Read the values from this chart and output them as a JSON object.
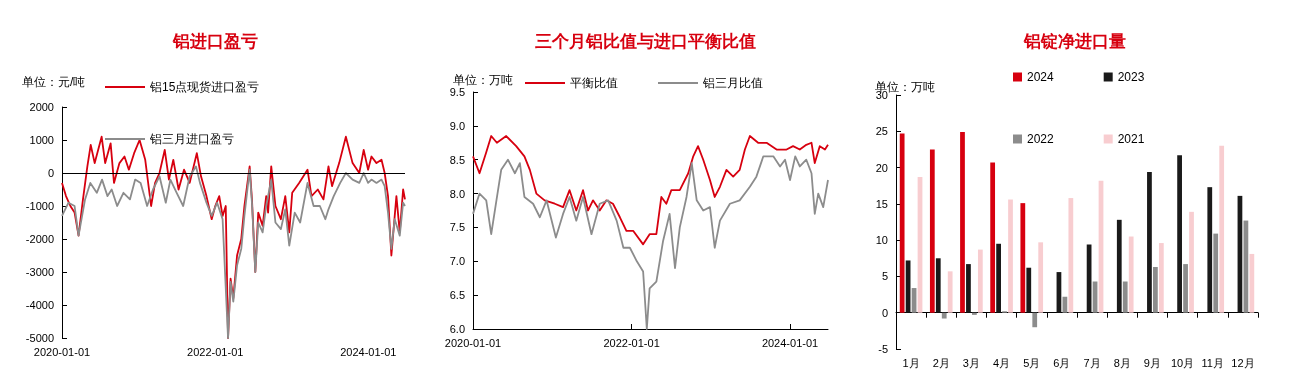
{
  "chart_data": [
    {
      "type": "line",
      "title": "铝进口盈亏",
      "annotations": [
        "单位：元/吨"
      ],
      "legend": "top",
      "marker": "none",
      "xlim": [
        "2020-01-01",
        "2024-06-24"
      ],
      "xticks": [
        "2020-01-01",
        "2022-01-01",
        "2024-01-01"
      ],
      "ylim": [
        -5000,
        2000
      ],
      "yticks": [
        -5000,
        -4000,
        -3000,
        -2000,
        -1000,
        0,
        1000,
        2000
      ],
      "ref_lines": [
        {
          "axis": "y",
          "value": 0,
          "color": "#000000"
        }
      ],
      "series": [
        {
          "name": "铝15点现货进口盈亏",
          "color": "#d7000f",
          "x": [
            "2020-01-01",
            "2020-01-20",
            "2020-02-10",
            "2020-03-01",
            "2020-03-20",
            "2020-04-10",
            "2020-05-01",
            "2020-05-17",
            "2020-06-05",
            "2020-07-08",
            "2020-07-25",
            "2020-08-20",
            "2020-09-05",
            "2020-10-01",
            "2020-10-25",
            "2020-11-15",
            "2020-12-10",
            "2021-01-05",
            "2021-02-01",
            "2021-03-01",
            "2021-03-20",
            "2021-04-10",
            "2021-05-05",
            "2021-05-25",
            "2021-06-15",
            "2021-07-10",
            "2021-08-05",
            "2021-09-01",
            "2021-10-05",
            "2021-10-25",
            "2021-11-20",
            "2021-12-15",
            "2022-01-01",
            "2022-01-20",
            "2022-02-05",
            "2022-02-20",
            "2022-03-03",
            "2022-03-15",
            "2022-03-28",
            "2022-04-15",
            "2022-05-05",
            "2022-05-20",
            "2022-06-14",
            "2022-06-25",
            "2022-07-11",
            "2022-07-25",
            "2022-08-15",
            "2022-09-01",
            "2022-09-10",
            "2022-09-25",
            "2022-10-15",
            "2022-11-10",
            "2022-12-01",
            "2022-12-20",
            "2023-01-03",
            "2023-02-05",
            "2023-03-17",
            "2023-04-05",
            "2023-05-05",
            "2023-06-01",
            "2023-06-25",
            "2023-07-12",
            "2023-08-15",
            "2023-09-16",
            "2023-10-18",
            "2023-11-19",
            "2023-12-10",
            "2023-12-31",
            "2024-01-16",
            "2024-02-09",
            "2024-03-04",
            "2024-03-19",
            "2024-04-04",
            "2024-04-20",
            "2024-05-06",
            "2024-05-14",
            "2024-05-30",
            "2024-06-15",
            "2024-06-24"
          ],
          "values": [
            -300,
            -700,
            -1000,
            -1200,
            -1900,
            -800,
            200,
            850,
            300,
            1100,
            300,
            900,
            -300,
            300,
            500,
            100,
            600,
            1000,
            400,
            -1000,
            -300,
            0,
            700,
            -200,
            400,
            -500,
            100,
            -300,
            600,
            -100,
            -700,
            -1400,
            -1000,
            -700,
            -1300,
            -1000,
            -5000,
            -3200,
            -3800,
            -2500,
            -2000,
            -1000,
            200,
            -800,
            -3000,
            -1200,
            -1600,
            -700,
            -1200,
            200,
            -1000,
            -1400,
            -700,
            -1800,
            -600,
            -300,
            100,
            -700,
            -500,
            -800,
            200,
            -400,
            300,
            1100,
            300,
            0,
            700,
            100,
            500,
            300,
            400,
            0,
            -700,
            -2500,
            -1300,
            -700,
            -1800,
            -500,
            -800
          ]
        },
        {
          "name": "铝三月进口盈亏",
          "color": "#8c8c8c",
          "x": [
            "2020-01-01",
            "2020-02-01",
            "2020-03-01",
            "2020-03-20",
            "2020-04-20",
            "2020-05-15",
            "2020-06-15",
            "2020-07-10",
            "2020-08-05",
            "2020-08-25",
            "2020-09-20",
            "2020-10-20",
            "2020-11-20",
            "2020-12-15",
            "2021-01-10",
            "2021-02-10",
            "2021-03-10",
            "2021-04-10",
            "2021-05-10",
            "2021-06-01",
            "2021-07-01",
            "2021-08-01",
            "2021-09-01",
            "2021-10-01",
            "2021-10-20",
            "2021-11-20",
            "2021-12-15",
            "2022-01-10",
            "2022-02-05",
            "2022-03-03",
            "2022-03-15",
            "2022-03-28",
            "2022-04-15",
            "2022-05-05",
            "2022-05-20",
            "2022-06-14",
            "2022-06-25",
            "2022-07-11",
            "2022-07-25",
            "2022-08-15",
            "2022-09-01",
            "2022-09-25",
            "2022-10-15",
            "2022-11-10",
            "2022-12-01",
            "2022-12-20",
            "2023-01-15",
            "2023-02-10",
            "2023-03-17",
            "2023-04-15",
            "2023-05-15",
            "2023-06-10",
            "2023-06-25",
            "2023-07-20",
            "2023-08-20",
            "2023-09-16",
            "2023-10-18",
            "2023-11-19",
            "2023-12-10",
            "2023-12-31",
            "2024-01-16",
            "2024-02-09",
            "2024-03-04",
            "2024-03-19",
            "2024-04-04",
            "2024-04-20",
            "2024-05-06",
            "2024-05-30",
            "2024-06-15",
            "2024-06-24"
          ],
          "values": [
            -1300,
            -900,
            -1000,
            -1900,
            -800,
            -300,
            -600,
            -200,
            -700,
            -500,
            -1000,
            -600,
            -800,
            -200,
            -300,
            -1000,
            -500,
            -100,
            -900,
            -200,
            -600,
            -1000,
            -100,
            200,
            -300,
            -900,
            -1300,
            -900,
            -1400,
            -5000,
            -3300,
            -3900,
            -2800,
            -2300,
            -1300,
            100,
            -900,
            -3000,
            -1500,
            -1800,
            -1000,
            -200,
            -1500,
            -1700,
            -1100,
            -2200,
            -1200,
            -1500,
            -300,
            -1000,
            -1000,
            -1400,
            -1100,
            -700,
            -300,
            0,
            -200,
            -300,
            0,
            -300,
            -200,
            -300,
            -200,
            -400,
            -1200,
            -2300,
            -1400,
            -1900,
            -900,
            -1000
          ]
        }
      ]
    },
    {
      "type": "line",
      "title": "三个月铝比值与进口平衡比值",
      "annotations": [
        "单位：万吨"
      ],
      "legend": "top",
      "marker": "none",
      "xlim": [
        "2020-01-01",
        "2024-06-24"
      ],
      "xticks": [
        "2020-01-01",
        "2022-01-01",
        "2024-01-01"
      ],
      "ylim": [
        6,
        9.5
      ],
      "yticks": [
        {
          "value": 6,
          "label": "6.0"
        },
        6.5,
        {
          "value": 7,
          "label": "7.0"
        },
        7.5,
        {
          "value": 8,
          "label": "8.0"
        },
        8.5,
        {
          "value": 9,
          "label": "9.0"
        },
        9.5
      ],
      "series": [
        {
          "name": "平衡比值",
          "color": "#d7000f",
          "x": [
            "2020-01-01",
            "2020-01-31",
            "2020-03-01",
            "2020-03-25",
            "2020-04-20",
            "2020-06-02",
            "2020-07-18",
            "2020-08-25",
            "2020-09-19",
            "2020-10-19",
            "2020-11-26",
            "2021-01-12",
            "2021-02-19",
            "2021-03-21",
            "2021-04-21",
            "2021-05-22",
            "2021-06-14",
            "2021-07-07",
            "2021-08-07",
            "2021-09-07",
            "2021-10-07",
            "2021-11-08",
            "2021-12-08",
            "2022-01-08",
            "2022-02-23",
            "2022-03-25",
            "2022-04-25",
            "2022-05-18",
            "2022-06-10",
            "2022-07-03",
            "2022-08-11",
            "2022-09-19",
            "2022-10-12",
            "2022-11-03",
            "2022-11-27",
            "2022-12-28",
            "2023-01-19",
            "2023-02-12",
            "2023-03-14",
            "2023-04-14",
            "2023-05-14",
            "2023-06-07",
            "2023-06-30",
            "2023-08-07",
            "2023-09-15",
            "2023-10-31",
            "2023-12-16",
            "2024-01-15",
            "2024-02-15",
            "2024-03-16",
            "2024-04-09",
            "2024-04-24",
            "2024-05-17",
            "2024-06-10",
            "2024-06-24"
          ],
          "values": [
            8.55,
            8.3,
            8.6,
            8.85,
            8.75,
            8.85,
            8.7,
            8.55,
            8.35,
            8.0,
            7.9,
            7.85,
            7.8,
            8.05,
            7.75,
            8.05,
            7.75,
            7.9,
            7.75,
            7.9,
            7.85,
            7.65,
            7.45,
            7.45,
            7.25,
            7.4,
            7.4,
            7.95,
            7.85,
            8.05,
            8.05,
            8.3,
            8.55,
            8.7,
            8.5,
            8.2,
            7.95,
            8.1,
            8.35,
            8.25,
            8.35,
            8.65,
            8.85,
            8.75,
            8.75,
            8.65,
            8.65,
            8.7,
            8.65,
            8.72,
            8.75,
            8.45,
            8.7,
            8.65,
            8.72
          ]
        },
        {
          "name": "铝三月比值",
          "color": "#8c8c8c",
          "x": [
            "2020-01-01",
            "2020-01-31",
            "2020-03-02",
            "2020-03-25",
            "2020-04-18",
            "2020-05-10",
            "2020-06-10",
            "2020-07-12",
            "2020-08-04",
            "2020-08-25",
            "2020-10-04",
            "2020-11-04",
            "2020-12-05",
            "2021-01-17",
            "2021-02-19",
            "2021-03-21",
            "2021-04-21",
            "2021-05-22",
            "2021-06-30",
            "2021-08-07",
            "2021-09-15",
            "2021-10-24",
            "2021-11-24",
            "2021-12-24",
            "2022-01-25",
            "2022-02-23",
            "2022-03-12",
            "2022-03-25",
            "2022-04-25",
            "2022-05-26",
            "2022-06-25",
            "2022-07-20",
            "2022-08-11",
            "2022-09-11",
            "2022-10-05",
            "2022-10-28",
            "2022-11-27",
            "2022-12-28",
            "2023-01-19",
            "2023-02-12",
            "2023-03-30",
            "2023-05-14",
            "2023-06-30",
            "2023-07-30",
            "2023-08-31",
            "2023-10-16",
            "2023-11-16",
            "2023-12-09",
            "2024-01-01",
            "2024-01-25",
            "2024-02-15",
            "2024-03-16",
            "2024-04-09",
            "2024-04-24",
            "2024-05-10",
            "2024-06-02",
            "2024-06-24"
          ],
          "values": [
            7.7,
            8.0,
            7.9,
            7.4,
            7.9,
            8.35,
            8.5,
            8.3,
            8.45,
            7.95,
            7.85,
            7.65,
            7.9,
            7.35,
            7.7,
            7.95,
            7.6,
            7.95,
            7.4,
            7.85,
            7.9,
            7.6,
            7.2,
            7.2,
            7.0,
            6.85,
            6.0,
            6.6,
            6.7,
            7.3,
            7.7,
            6.9,
            7.5,
            7.95,
            8.45,
            7.9,
            7.75,
            7.8,
            7.2,
            7.6,
            7.85,
            7.9,
            8.1,
            8.25,
            8.55,
            8.55,
            8.4,
            8.5,
            8.2,
            8.55,
            8.4,
            8.5,
            8.3,
            7.7,
            8.0,
            7.8,
            8.2
          ]
        }
      ]
    },
    {
      "type": "bar",
      "title": "铝锭净进口量",
      "annotations": [
        "单位：万吨"
      ],
      "legend": "top",
      "categories": [
        "1月",
        "2月",
        "3月",
        "4月",
        "5月",
        "6月",
        "7月",
        "8月",
        "9月",
        "10月",
        "11月",
        "12月"
      ],
      "ylim": [
        -5,
        30
      ],
      "yticks": [
        -5,
        0,
        5,
        10,
        15,
        20,
        25,
        30
      ],
      "series": [
        {
          "name": "2024",
          "color": "#d7000f",
          "values": [
            24.7,
            22.5,
            24.9,
            20.7,
            15.1,
            null,
            null,
            null,
            null,
            null,
            null,
            null
          ]
        },
        {
          "name": "2023",
          "color": "#1a1a1a",
          "values": [
            7.2,
            7.5,
            6.7,
            9.5,
            6.2,
            5.6,
            9.4,
            12.8,
            19.4,
            21.7,
            17.3,
            16.1
          ]
        },
        {
          "name": "2022",
          "color": "#8c8c8c",
          "values": [
            3.4,
            -0.8,
            -0.3,
            0.2,
            -2.0,
            2.2,
            4.3,
            4.3,
            6.3,
            6.7,
            10.9,
            12.7
          ]
        },
        {
          "name": "2021",
          "color": "#f8cdd0",
          "values": [
            18.7,
            5.7,
            8.7,
            15.6,
            9.7,
            15.8,
            18.2,
            10.5,
            9.6,
            13.9,
            23.0,
            8.1
          ]
        }
      ]
    }
  ]
}
